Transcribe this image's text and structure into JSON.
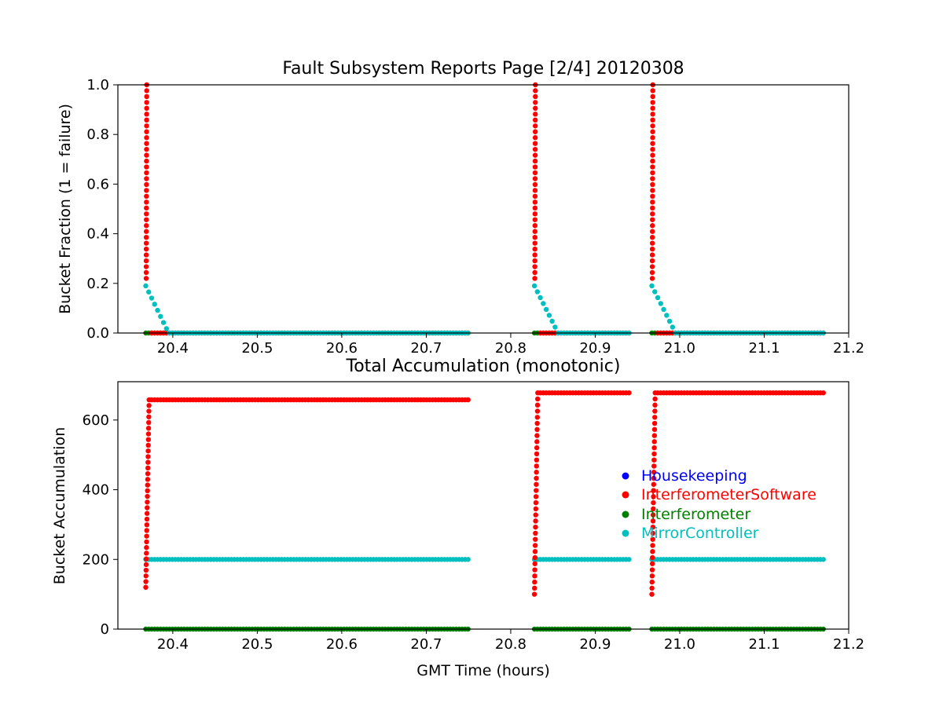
{
  "chart_data": [
    {
      "type": "scatter",
      "title": "Fault Subsystem Reports Page [2/4] 20120308",
      "xlabel": "",
      "ylabel": "Bucket Fraction (1 = failure)",
      "xlim": [
        20.335,
        21.2
      ],
      "ylim": [
        0,
        1.0
      ],
      "xticks": [
        20.4,
        20.5,
        20.6,
        20.7,
        20.8,
        20.9,
        21.0,
        21.1,
        21.2
      ],
      "xtick_labels": [
        "20.4",
        "20.5",
        "20.6",
        "20.7",
        "20.8",
        "20.9",
        "21.0",
        "21.1",
        "21.2"
      ],
      "yticks": [
        0.0,
        0.2,
        0.4,
        0.6,
        0.8,
        1.0
      ],
      "ytick_labels": [
        "0.0",
        "0.2",
        "0.4",
        "0.6",
        "0.8",
        "1.0"
      ],
      "grid": false,
      "segments": [
        {
          "start": 20.368,
          "end": 20.75,
          "spike_peak": 1.0,
          "spike_steps": 33,
          "mirror_start": 0.19,
          "mirror_decay_end": 20.395
        },
        {
          "start": 20.828,
          "end": 20.94,
          "spike_peak": 1.0,
          "spike_steps": 33,
          "mirror_start": 0.19,
          "mirror_decay_end": 20.856
        },
        {
          "start": 20.967,
          "end": 21.172,
          "spike_peak": 1.0,
          "spike_steps": 33,
          "mirror_start": 0.19,
          "mirror_decay_end": 20.995
        }
      ],
      "series": [
        {
          "name": "Housekeeping",
          "color": "#0000ff"
        },
        {
          "name": "InterferometerSoftware",
          "color": "#ff0000"
        },
        {
          "name": "Interferometer",
          "color": "#008000"
        },
        {
          "name": "MirrorController",
          "color": "#00bfbf"
        }
      ]
    },
    {
      "type": "scatter",
      "title": "Total Accumulation (monotonic)",
      "xlabel": "GMT Time (hours)",
      "ylabel": "Bucket Accumulation",
      "xlim": [
        20.335,
        21.2
      ],
      "ylim": [
        0,
        710
      ],
      "xticks": [
        20.4,
        20.5,
        20.6,
        20.7,
        20.8,
        20.9,
        21.0,
        21.1,
        21.2
      ],
      "xtick_labels": [
        "20.4",
        "20.5",
        "20.6",
        "20.7",
        "20.8",
        "20.9",
        "21.0",
        "21.1",
        "21.2"
      ],
      "yticks": [
        0,
        200,
        400,
        600
      ],
      "ytick_labels": [
        "0",
        "200",
        "400",
        "600"
      ],
      "grid": false,
      "legend_position": "center-right",
      "segments": [
        {
          "start": 20.368,
          "end": 20.75,
          "red_start": 120,
          "red_plateau": 658,
          "spike_steps": 33,
          "cyan": 200,
          "green": 0
        },
        {
          "start": 20.828,
          "end": 20.94,
          "red_start": 100,
          "red_plateau": 678,
          "spike_steps": 33,
          "cyan": 200,
          "green": 0
        },
        {
          "start": 20.967,
          "end": 21.172,
          "red_start": 100,
          "red_plateau": 678,
          "spike_steps": 33,
          "cyan": 200,
          "green": 0
        }
      ],
      "series": [
        {
          "name": "Housekeeping",
          "color": "#0000ff"
        },
        {
          "name": "InterferometerSoftware",
          "color": "#ff0000"
        },
        {
          "name": "Interferometer",
          "color": "#008000"
        },
        {
          "name": "MirrorController",
          "color": "#00bfbf"
        }
      ]
    }
  ]
}
